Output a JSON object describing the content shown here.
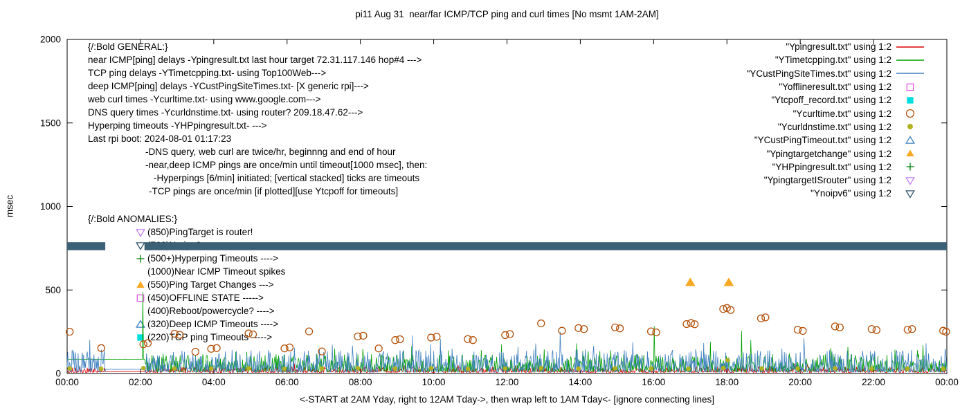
{
  "title": "pi11 Aug 31  near/far ICMP/TCP ping and curl times [No msmt 1AM-2AM]",
  "y_axis": {
    "label": "msec",
    "ticks": [
      "0",
      "500",
      "1000",
      "1500",
      "2000"
    ]
  },
  "x_axis": {
    "label": "<-START at 2AM Yday, right to 12AM Tday->, then wrap left to 1AM Tday<- [ignore connecting lines]"
  },
  "general": {
    "heading": "{/:Bold GENERAL:}",
    "lines": [
      "near ICMP[ping] delays -Ypingresult.txt last hour target 72.31.117.146 hop#4 --->",
      "TCP ping delays -YTimetcpping.txt- using Top100Web--->",
      "deep ICMP[ping] delays -YCustPingSiteTimes.txt- [X generic rpi]--->",
      "web curl times -Ycurltime.txt- using www.google.com--->",
      "DNS query times -Ycurldnstime.txt- using router? 209.18.47.62--->",
      "Hyperping timeouts -YHPpingresult.txt- --->",
      "Last rpi boot: 2024-08-01 01:17:23"
    ],
    "notes": [
      {
        "text": "-DNS query, web curl are twice/hr, beginnng and end of hour",
        "indent": 83
      },
      {
        "text": "-near,deep ICMP pings are once/min until timeout[1000 msec], then:",
        "indent": 83
      },
      {
        "text": "-Hyperpings [6/min] initiated; [vertical stacked] ticks are timeouts",
        "indent": 95
      },
      {
        "text": "-TCP pings are once/min [if plotted][use Ytcpoff for timeouts]",
        "indent": 88
      }
    ]
  },
  "anomalies": {
    "heading": "{/:Bold ANOMALIES:}",
    "items": [
      {
        "marker": "triangle-down-open",
        "color": "#c27ff0",
        "text": "(850)PingTarget is router!",
        "obscured": false
      },
      {
        "marker": "triangle-down-open",
        "color": "#33566e",
        "text": "(760)No ipv6",
        "obscured": true
      },
      {
        "marker": "plus",
        "color": "#12891c",
        "text": "(500+)Hyperping Timeouts ---->",
        "obscured": false
      },
      {
        "marker": "none",
        "color": "#000000",
        "text": "(1000)Near ICMP Timeout spikes",
        "obscured": false
      },
      {
        "marker": "triangle-up-filled",
        "color": "#f7a823",
        "text": "(550)Ping Target Changes --->",
        "obscured": false
      },
      {
        "marker": "square-open",
        "color": "#e355e3",
        "text": "(450)OFFLINE STATE ----->",
        "obscured": false
      },
      {
        "marker": "none",
        "color": "#000000",
        "text": "(400)Reboot/powercycle? ---->",
        "obscured": false
      },
      {
        "marker": "triangle-up-open",
        "color": "#4080c0",
        "text": "(320)Deep ICMP Timeouts ---->",
        "obscured": false
      },
      {
        "marker": "square-filled",
        "color": "#00dddd",
        "text": "(220)TCP ping Timeouts ----->",
        "obscured": false
      }
    ]
  },
  "legend": [
    {
      "label": "\"Ypingresult.txt\" using 1:2",
      "sample": "line",
      "color": "#dd0000"
    },
    {
      "label": "\"YTimetcpping.txt\" using 1:2",
      "sample": "line",
      "color": "#00a000"
    },
    {
      "label": "\"YCustPingSiteTimes.txt\" using 1:2",
      "sample": "line",
      "color": "#4080c0"
    },
    {
      "label": "\"Yofflineresult.txt\" using 1:2",
      "sample": "square-open",
      "color": "#e355e3"
    },
    {
      "label": "\"Ytcpoff_record.txt\" using 1:2",
      "sample": "square-filled",
      "color": "#00dddd"
    },
    {
      "label": "\"Ycurltime.txt\" using 1:2",
      "sample": "circle-open",
      "color": "#b5520d"
    },
    {
      "label": "\"Ycurldnstime.txt\" using 1:2",
      "sample": "circle-filled",
      "color": "#b2b220"
    },
    {
      "label": "\"YCustPingTimeout.txt\" using 1:2",
      "sample": "triangle-up-open",
      "color": "#4080c0"
    },
    {
      "label": "\"Ypingtargetchange\" using 1:2",
      "sample": "triangle-up-filled",
      "color": "#f7a823"
    },
    {
      "label": "\"YHPpingresult.txt\" using 1:2",
      "sample": "plus",
      "color": "#12891c"
    },
    {
      "label": "\"YpingtargetISrouter\" using 1:2",
      "sample": "triangle-down-open",
      "color": "#c27ff0"
    },
    {
      "label": "\"Ynoipv6\" using 1:2",
      "sample": "triangle-down-open",
      "color": "#33566e"
    }
  ],
  "chart_data": {
    "type": "mixed",
    "title": "pi11 Aug 31  near/far ICMP/TCP ping and curl times [No msmt 1AM-2AM]",
    "xlabel": "<-START at 2AM Yday, right to 12AM Tday->, then wrap left to 1AM Tday<- [ignore connecting lines]",
    "ylabel": "msec",
    "xlim": [
      0,
      24
    ],
    "ylim": [
      0,
      2000
    ],
    "x_ticks_hours": [
      0,
      2,
      4,
      6,
      8,
      10,
      12,
      14,
      16,
      18,
      20,
      22,
      24
    ],
    "x_tick_labels": [
      "00:00",
      "02:00",
      "04:00",
      "06:00",
      "08:00",
      "10:00",
      "12:00",
      "14:00",
      "16:00",
      "18:00",
      "20:00",
      "22:00",
      "00:00"
    ],
    "y_ticks": [
      0,
      500,
      1000,
      1500,
      2000
    ],
    "no_measurement_gap_hours": [
      1.04,
      2.11
    ],
    "series": [
      {
        "name": "Ynoipv6",
        "type": "band",
        "color": "#3c6075",
        "y_center": 762,
        "y_half": 24,
        "segments": [
          [
            0,
            1.04
          ],
          [
            2.11,
            24
          ]
        ]
      },
      {
        "name": "Ypingresult",
        "type": "noisy-line",
        "color": "#dd0000",
        "baseline": 6,
        "amp": 16,
        "flats": [
          {
            "from": 1.04,
            "to": 2.11,
            "value": 12
          }
        ],
        "spikes": [
          [
            6.2,
            60
          ],
          [
            14.5,
            70
          ],
          [
            20.2,
            55
          ]
        ]
      },
      {
        "name": "YTimetcpping",
        "type": "noisy-line",
        "color": "#00a000",
        "baseline": 10,
        "amp": 48,
        "flats": [
          {
            "from": 0,
            "to": 2.11,
            "value": 85
          }
        ],
        "spikes": [
          [
            2.07,
            490
          ],
          [
            4.6,
            130
          ],
          [
            7.3,
            150
          ],
          [
            9.4,
            165
          ],
          [
            11.3,
            140
          ],
          [
            13.9,
            180
          ],
          [
            16.02,
            285
          ],
          [
            17.55,
            190
          ],
          [
            18.4,
            255
          ],
          [
            18.65,
            200
          ],
          [
            21.3,
            160
          ],
          [
            23.2,
            140
          ]
        ]
      },
      {
        "name": "YCustPingSiteTimes",
        "type": "noisy-line",
        "color": "#4080c0",
        "baseline": 8,
        "amp": 62,
        "flats": [
          {
            "from": 1.04,
            "to": 2.11,
            "value": 25
          }
        ],
        "spikes": [
          [
            0.3,
            120
          ],
          [
            3.2,
            130
          ],
          [
            5.5,
            140
          ],
          [
            6.8,
            120
          ],
          [
            8.2,
            130
          ],
          [
            10.5,
            150
          ],
          [
            12.3,
            160
          ],
          [
            13.45,
            250
          ],
          [
            15.2,
            140
          ],
          [
            16.5,
            130
          ],
          [
            19.5,
            150
          ],
          [
            20.8,
            140
          ],
          [
            22.5,
            130
          ],
          [
            23.5,
            120
          ]
        ]
      },
      {
        "name": "Ycurltime",
        "type": "scatter",
        "marker": "circle-open",
        "color": "#b5520d",
        "size": 5,
        "points": [
          [
            0.07,
            250
          ],
          [
            0.93,
            152
          ],
          [
            2.08,
            175
          ],
          [
            2.2,
            182
          ],
          [
            2.93,
            238
          ],
          [
            3.07,
            232
          ],
          [
            3.5,
            130
          ],
          [
            3.93,
            148
          ],
          [
            4.08,
            152
          ],
          [
            4.95,
            240
          ],
          [
            5.07,
            234
          ],
          [
            5.93,
            150
          ],
          [
            6.07,
            156
          ],
          [
            6.6,
            252
          ],
          [
            6.95,
            132
          ],
          [
            7.93,
            222
          ],
          [
            8.08,
            226
          ],
          [
            8.5,
            150
          ],
          [
            8.95,
            200
          ],
          [
            9.08,
            205
          ],
          [
            9.93,
            215
          ],
          [
            10.08,
            220
          ],
          [
            10.93,
            206
          ],
          [
            11.07,
            200
          ],
          [
            11.95,
            230
          ],
          [
            12.08,
            236
          ],
          [
            12.93,
            300
          ],
          [
            13.5,
            256
          ],
          [
            13.95,
            272
          ],
          [
            14.1,
            266
          ],
          [
            14.95,
            276
          ],
          [
            15.08,
            270
          ],
          [
            15.93,
            252
          ],
          [
            16.07,
            246
          ],
          [
            16.9,
            296
          ],
          [
            17.02,
            302
          ],
          [
            17.12,
            295
          ],
          [
            17.9,
            386
          ],
          [
            18.0,
            392
          ],
          [
            18.1,
            380
          ],
          [
            18.93,
            330
          ],
          [
            19.05,
            336
          ],
          [
            19.93,
            262
          ],
          [
            20.07,
            255
          ],
          [
            20.95,
            282
          ],
          [
            21.08,
            276
          ],
          [
            21.95,
            266
          ],
          [
            22.08,
            260
          ],
          [
            22.93,
            262
          ],
          [
            23.05,
            266
          ],
          [
            23.9,
            256
          ],
          [
            23.98,
            250
          ]
        ]
      },
      {
        "name": "Ycurldnstime",
        "type": "scatter",
        "marker": "circle-filled",
        "color": "#b2b220",
        "size": 4.5,
        "points": [
          [
            0.07,
            30
          ],
          [
            0.93,
            28
          ],
          [
            2.08,
            32
          ],
          [
            2.93,
            30
          ],
          [
            3.93,
            29
          ],
          [
            4.95,
            31
          ],
          [
            5.93,
            28
          ],
          [
            6.95,
            30
          ],
          [
            7.93,
            32
          ],
          [
            8.95,
            29
          ],
          [
            9.93,
            31
          ],
          [
            10.93,
            28
          ],
          [
            11.95,
            30
          ],
          [
            12.93,
            32
          ],
          [
            13.95,
            29
          ],
          [
            14.95,
            31
          ],
          [
            15.93,
            30
          ],
          [
            16.95,
            28
          ],
          [
            17.9,
            33
          ],
          [
            18.02,
            80
          ],
          [
            18.95,
            30
          ],
          [
            19.93,
            29
          ],
          [
            20.95,
            31
          ],
          [
            21.95,
            28
          ],
          [
            22.93,
            30
          ],
          [
            23.9,
            29
          ]
        ]
      },
      {
        "name": "Ypingtargetchange",
        "type": "scatter",
        "marker": "triangle-up-filled",
        "color": "#f7a823",
        "size": 7,
        "points": [
          [
            17.0,
            545
          ],
          [
            18.05,
            545
          ]
        ]
      }
    ]
  }
}
